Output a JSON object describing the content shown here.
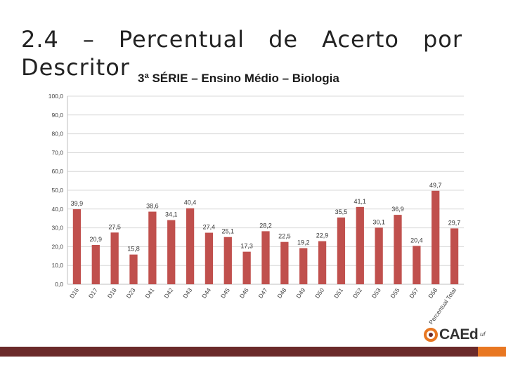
{
  "slide": {
    "title": "2.4 – Percentual de Acerto por Descritor"
  },
  "chart_data": {
    "type": "bar",
    "title": "3ª SÉRIE – Ensino Médio – Biologia",
    "xlabel": "",
    "ylabel": "",
    "ylim": [
      0,
      100
    ],
    "yticks": [
      "0,0",
      "10,0",
      "20,0",
      "30,0",
      "40,0",
      "50,0",
      "60,0",
      "70,0",
      "80,0",
      "90,0",
      "100,0"
    ],
    "grid": true,
    "legend": "none",
    "bar_color": "#c0504d",
    "categories": [
      "D16",
      "D17",
      "D18",
      "D23",
      "D41",
      "D42",
      "D43",
      "D44",
      "D45",
      "D46",
      "D47",
      "D48",
      "D49",
      "D50",
      "D51",
      "D52",
      "D53",
      "D55",
      "D57",
      "D58",
      "Percentual Total"
    ],
    "values": [
      39.9,
      20.9,
      27.5,
      15.8,
      38.6,
      34.1,
      40.4,
      27.4,
      25.1,
      17.3,
      28.2,
      22.5,
      19.2,
      22.9,
      35.5,
      41.1,
      30.1,
      36.9,
      20.4,
      49.7,
      29.7
    ],
    "value_labels": [
      "39,9",
      "20,9",
      "27,5",
      "15,8",
      "38,6",
      "34,1",
      "40,4",
      "27,4",
      "25,1",
      "17,3",
      "28,2",
      "22,5",
      "19,2",
      "22,9",
      "35,5",
      "41,1",
      "30,1",
      "36,9",
      "20,4",
      "49,7",
      "29,7"
    ]
  },
  "logo": {
    "text": "CAEd",
    "sub": "uf"
  },
  "colors": {
    "footer": "#6b2a2a",
    "footer_accent": "#e87722",
    "grid": "#d9d9d9"
  }
}
